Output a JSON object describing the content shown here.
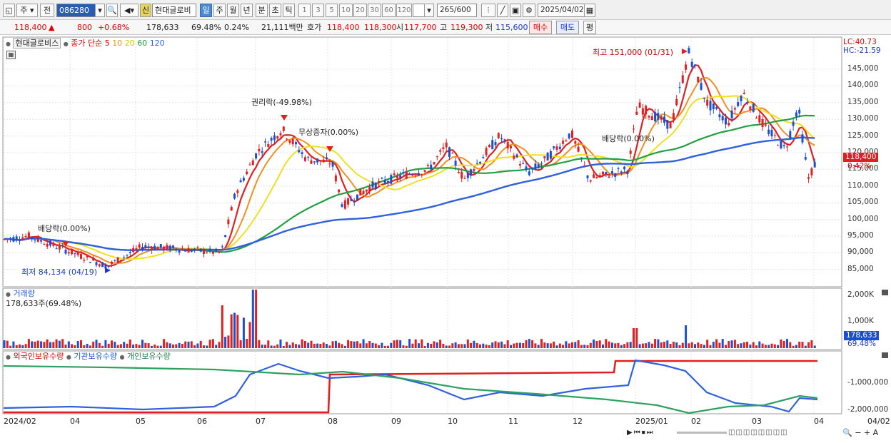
{
  "toolbar": {
    "period_type": "주",
    "prev_label": "전",
    "stock_code": "086280",
    "new_badge": "신",
    "stock_name": "현대글로비",
    "periods": [
      "일",
      "주",
      "월",
      "년",
      "분",
      "초",
      "틱"
    ],
    "selected_period": "일",
    "intervals": [
      "1",
      "3",
      "5",
      "10",
      "20",
      "30",
      "60",
      "120"
    ],
    "count": "265",
    "count_total": "/600",
    "date": "2025/04/02"
  },
  "quote": {
    "price": "118,400",
    "arrow": "▲",
    "change": "800",
    "change_pct": "+0.68%",
    "volume": "178,633",
    "volume_ratio": "69.48%",
    "turnover": "0.24%",
    "amount": "21,111백만",
    "ask_label": "호가",
    "ask": "118,400",
    "bid": "118,300",
    "open_label": "시",
    "open": "117,700",
    "high_label": "고",
    "high": "119,300",
    "low_label": "저",
    "low": "115,600",
    "buy_label": "매수",
    "sell_label": "매도",
    "eval_label": "평"
  },
  "price_panel": {
    "name": "현대글로비스",
    "ma_label": "종가 단순",
    "ma_periods": [
      "5",
      "10",
      "20",
      "60",
      "120"
    ],
    "lc": "LC:40.73",
    "hc": "HC:-21.59",
    "current_price": "118,400",
    "current_pct": "0.42%",
    "y_ticks": [
      "145,000",
      "140,000",
      "135,000",
      "130,000",
      "125,000",
      "120,000",
      "115,000",
      "110,000",
      "105,000",
      "100,000",
      "95,000",
      "90,000",
      "85,000"
    ],
    "annotations": {
      "high": "최고 151,000 (01/31)",
      "low": "최저 84,134 (04/19)",
      "rights": "권리락(-49.98%)",
      "bonus": "무상증자(0.00%)",
      "div1": "배당락(0.00%)",
      "div2": "배당락(0.00%)"
    }
  },
  "volume_panel": {
    "name": "거래량",
    "value": "178,633주(69.48%)",
    "y_ticks": [
      "2,000K",
      "1,000K"
    ],
    "current": "178,633",
    "current_pct": "69.48%"
  },
  "holder_panel": {
    "series": [
      "외국인보유수량",
      "기관보유수량",
      "개인보유수량"
    ],
    "y_ticks": [
      "-1,000,000",
      "-2,000,000"
    ]
  },
  "x_labels": [
    "2024/02",
    "04",
    "05",
    "06",
    "07",
    "08",
    "09",
    "10",
    "11",
    "12",
    "2025/01",
    "02",
    "03",
    "04",
    "04/02"
  ],
  "colors": {
    "up": "#e02020",
    "down": "#1a4fd0",
    "ma5": "#e02020",
    "ma10": "#f09020",
    "ma20": "#f0e020",
    "ma60": "#20a040",
    "ma120": "#3060e0",
    "foreign": "#e02020",
    "institution": "#3060e0",
    "individual": "#30a060"
  }
}
